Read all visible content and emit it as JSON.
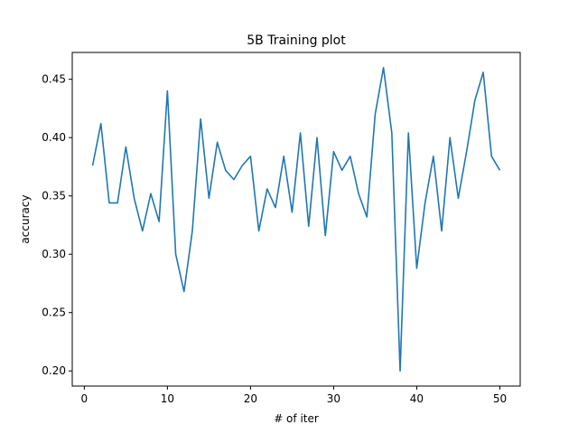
{
  "chart_data": {
    "type": "line",
    "title": "5B Training plot",
    "xlabel": "# of iter",
    "ylabel": "accuracy",
    "xlim": [
      -1.45,
      52.45
    ],
    "ylim": [
      0.187,
      0.473
    ],
    "xticks": [
      0,
      10,
      20,
      30,
      40,
      50
    ],
    "xtick_labels": [
      "0",
      "10",
      "20",
      "30",
      "40",
      "50"
    ],
    "yticks": [
      0.2,
      0.25,
      0.3,
      0.35,
      0.4,
      0.45
    ],
    "ytick_labels": [
      "0.20",
      "0.25",
      "0.30",
      "0.35",
      "0.40",
      "0.45"
    ],
    "grid": false,
    "series": [
      {
        "color": "#1f77b4",
        "x": [
          1,
          2,
          3,
          4,
          5,
          6,
          7,
          8,
          9,
          10,
          11,
          12,
          13,
          14,
          15,
          16,
          17,
          18,
          19,
          20,
          21,
          22,
          23,
          24,
          25,
          26,
          27,
          28,
          29,
          30,
          31,
          32,
          33,
          34,
          35,
          36,
          37,
          38,
          39,
          40,
          41,
          42,
          43,
          44,
          45,
          46,
          47,
          48,
          49,
          50
        ],
        "values": [
          0.376,
          0.412,
          0.344,
          0.344,
          0.392,
          0.348,
          0.32,
          0.352,
          0.328,
          0.44,
          0.3,
          0.268,
          0.32,
          0.416,
          0.348,
          0.396,
          0.372,
          0.364,
          0.376,
          0.384,
          0.32,
          0.356,
          0.34,
          0.384,
          0.336,
          0.404,
          0.324,
          0.4,
          0.316,
          0.388,
          0.372,
          0.384,
          0.352,
          0.332,
          0.42,
          0.46,
          0.404,
          0.2,
          0.404,
          0.288,
          0.344,
          0.384,
          0.32,
          0.4,
          0.348,
          0.388,
          0.432,
          0.456,
          0.384,
          0.372
        ]
      }
    ]
  }
}
